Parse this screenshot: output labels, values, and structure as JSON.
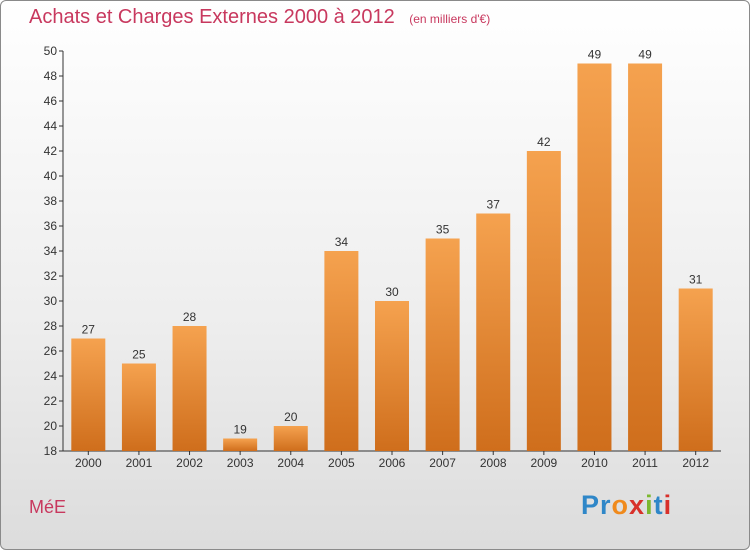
{
  "header": {
    "title": "Achats et Charges Externes 2000 à 2012",
    "subtitle": "(en milliers d'€)"
  },
  "footer": {
    "commune": "MéE",
    "logo_letters": [
      "P",
      "r",
      "o",
      "x",
      "i",
      "t",
      "i"
    ],
    "logo_colors": [
      "#2f87c8",
      "#2f87c8",
      "#f08a1c",
      "#d8302a",
      "#7cb82f",
      "#2f87c8",
      "#d8302a"
    ]
  },
  "chart_data": {
    "type": "bar",
    "title": "Achats et Charges Externes 2000 à 2012",
    "subtitle": "(en milliers d'€)",
    "categories": [
      "2000",
      "2001",
      "2002",
      "2003",
      "2004",
      "2005",
      "2006",
      "2007",
      "2008",
      "2009",
      "2010",
      "2011",
      "2012"
    ],
    "values": [
      27,
      25,
      28,
      19,
      20,
      34,
      30,
      35,
      37,
      42,
      49,
      49,
      31
    ],
    "ylim": [
      18,
      50
    ],
    "yticks": [
      18,
      20,
      22,
      24,
      26,
      28,
      30,
      32,
      34,
      36,
      38,
      40,
      42,
      44,
      46,
      48,
      50
    ],
    "grid": false,
    "data_labels": true,
    "bar_color_top": "#f5a24f",
    "bar_color_bottom": "#cf6e1c"
  }
}
